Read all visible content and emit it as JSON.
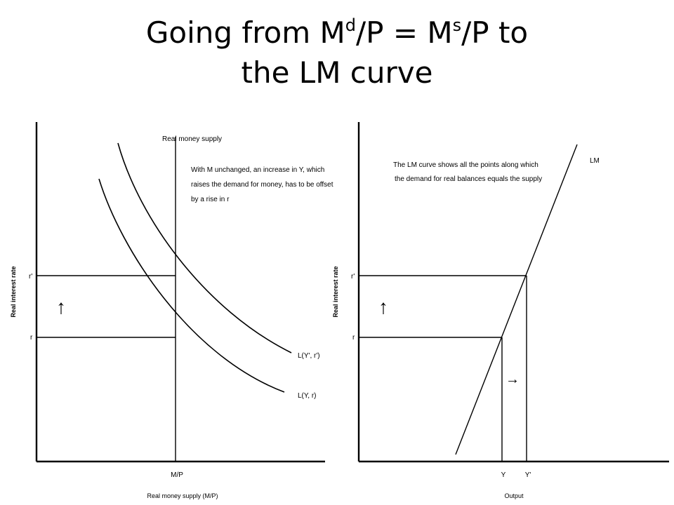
{
  "title": {
    "line1_a": "Going from M",
    "line1_sup1": "d",
    "line1_b": "/P = M",
    "line1_sup2": "s",
    "line1_c": "/P to",
    "line2": "the LM curve"
  },
  "left_panel": {
    "y_axis_label": "Real interest rate",
    "x_axis_label": "Real money supply (M/P)",
    "supply_label": "Real money supply",
    "annotation": [
      "With M unchanged, an increase in Y, which",
      "raises the demand for money, has to be offset",
      "by a rise in r"
    ],
    "r_prime": "r'",
    "r": "r",
    "mp_tick": "M/P",
    "curve_upper_label": "L(Y', r')",
    "curve_lower_label": "L(Y, r)",
    "arrow_glyph": "↑"
  },
  "right_panel": {
    "y_axis_label": "Real interest rate",
    "x_axis_label": "Output",
    "annotation": [
      "The LM curve shows all the points along which",
      "the demand for real balances equals the supply"
    ],
    "lm_label": "LM",
    "r_prime": "r'",
    "r": "r",
    "y_tick": "Y",
    "y_prime_tick": "Y'",
    "arrow_up_glyph": "↑",
    "arrow_right_glyph": "→"
  }
}
